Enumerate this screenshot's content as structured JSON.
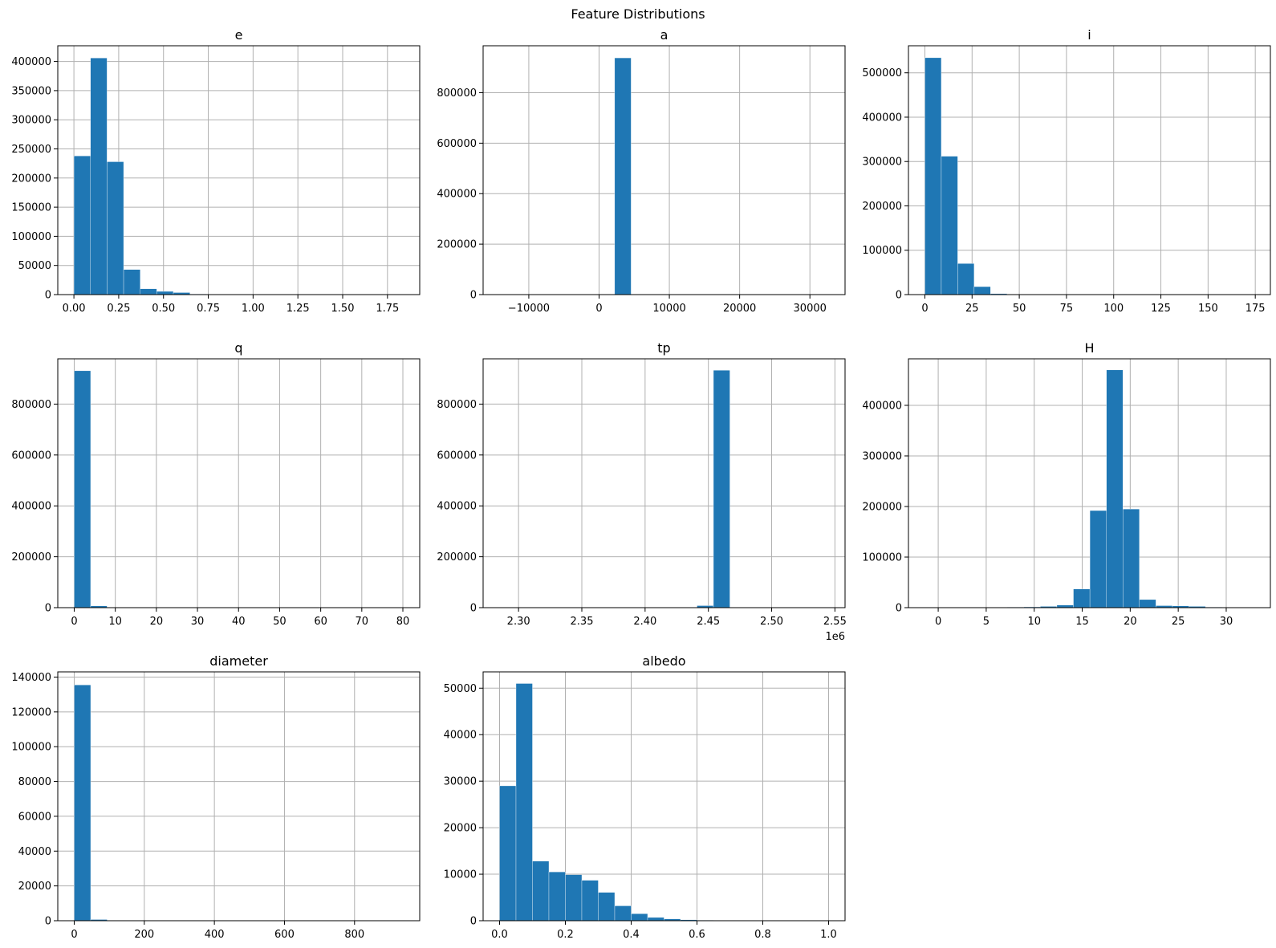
{
  "figure": {
    "title": "Feature Distributions"
  },
  "colors": {
    "bar": "#1f77b4",
    "grid": "#b0b0b0"
  },
  "chart_data": [
    {
      "type": "bar",
      "title": "e",
      "grid": true,
      "xlim": [
        -0.09,
        1.93
      ],
      "ylim": [
        0,
        427000
      ],
      "xticks": [
        0,
        0.25,
        0.5,
        0.75,
        1.0,
        1.25,
        1.5,
        1.75
      ],
      "xtick_labels": [
        "0.00",
        "0.25",
        "0.50",
        "0.75",
        "1.00",
        "1.25",
        "1.50",
        "1.75"
      ],
      "yticks": [
        0,
        50000,
        100000,
        150000,
        200000,
        250000,
        300000,
        350000,
        400000
      ],
      "ytick_labels": [
        "0",
        "50000",
        "100000",
        "150000",
        "200000",
        "250000",
        "300000",
        "350000",
        "400000"
      ],
      "bin_start": 0,
      "bin_end": 1.85,
      "values": [
        238000,
        406000,
        228000,
        43000,
        10000,
        5500,
        3500,
        900,
        500,
        300,
        200,
        150,
        100,
        80,
        60,
        50,
        40,
        30,
        20,
        10
      ]
    },
    {
      "type": "bar",
      "title": "a",
      "grid": true,
      "xlim": [
        -16500,
        35000
      ],
      "ylim": [
        0,
        986000
      ],
      "xticks": [
        -10000,
        0,
        10000,
        20000,
        30000
      ],
      "xtick_labels": [
        "−10000",
        "0",
        "10000",
        "20000",
        "30000"
      ],
      "yticks": [
        0,
        200000,
        400000,
        600000,
        800000
      ],
      "ytick_labels": [
        "0",
        "200000",
        "400000",
        "600000",
        "800000"
      ],
      "bin_start": -14200,
      "bin_end": 32700,
      "values": [
        0,
        0,
        0,
        0,
        0,
        0,
        5,
        938000,
        40,
        10,
        5,
        3,
        2,
        1,
        1,
        1,
        1,
        1,
        1,
        1
      ]
    },
    {
      "type": "bar",
      "title": "i",
      "grid": true,
      "xlim": [
        -8.7,
        183
      ],
      "ylim": [
        0,
        561000
      ],
      "xticks": [
        0,
        25,
        50,
        75,
        100,
        125,
        150,
        175
      ],
      "xtick_labels": [
        "0",
        "25",
        "50",
        "75",
        "100",
        "125",
        "150",
        "175"
      ],
      "yticks": [
        0,
        100000,
        200000,
        300000,
        400000,
        500000
      ],
      "ytick_labels": [
        "0",
        "100000",
        "200000",
        "300000",
        "400000",
        "500000"
      ],
      "bin_start": 0,
      "bin_end": 174,
      "values": [
        534000,
        312000,
        70000,
        18000,
        2000,
        400,
        200,
        100,
        60,
        40,
        30,
        20,
        15,
        10,
        8,
        5,
        4,
        3,
        2,
        1
      ]
    },
    {
      "type": "bar",
      "title": "q",
      "grid": true,
      "xlim": [
        -4,
        84.1
      ],
      "ylim": [
        0,
        978000
      ],
      "xticks": [
        0,
        10,
        20,
        30,
        40,
        50,
        60,
        70,
        80
      ],
      "xtick_labels": [
        "0",
        "10",
        "20",
        "30",
        "40",
        "50",
        "60",
        "70",
        "80"
      ],
      "yticks": [
        0,
        200000,
        400000,
        600000,
        800000
      ],
      "ytick_labels": [
        "0",
        "200000",
        "400000",
        "600000",
        "800000"
      ],
      "bin_start": 0,
      "bin_end": 80,
      "values": [
        931000,
        7000,
        600,
        200,
        100,
        60,
        40,
        30,
        20,
        15,
        10,
        8,
        5,
        4,
        3,
        2,
        2,
        1,
        1,
        1
      ]
    },
    {
      "type": "bar",
      "title": "tp",
      "grid": true,
      "xlim": [
        2272000,
        2558000
      ],
      "ylim": [
        0,
        978000
      ],
      "xticks": [
        2300000,
        2350000,
        2400000,
        2450000,
        2500000,
        2550000
      ],
      "xtick_labels": [
        "2.30",
        "2.35",
        "2.40",
        "2.45",
        "2.50",
        "2.55"
      ],
      "offset_label": "1e6",
      "yticks": [
        0,
        200000,
        400000,
        600000,
        800000
      ],
      "ytick_labels": [
        "0",
        "200000",
        "400000",
        "600000",
        "800000"
      ],
      "bin_start": 2285000,
      "bin_end": 2545000,
      "values": [
        1,
        1,
        1,
        1,
        1,
        1,
        1,
        2,
        3,
        5,
        10,
        20,
        8000,
        933000,
        500,
        50,
        10,
        5,
        2,
        1
      ]
    },
    {
      "type": "bar",
      "title": "H",
      "grid": true,
      "xlim": [
        -3.1,
        34.6
      ],
      "ylim": [
        0,
        492000
      ],
      "xticks": [
        0,
        5,
        10,
        15,
        20,
        25,
        30
      ],
      "xtick_labels": [
        "0",
        "5",
        "10",
        "15",
        "20",
        "25",
        "30"
      ],
      "yticks": [
        0,
        100000,
        200000,
        300000,
        400000
      ],
      "ytick_labels": [
        "0",
        "100000",
        "200000",
        "300000",
        "400000"
      ],
      "bin_start": -1.4,
      "bin_end": 33,
      "values": [
        5,
        10,
        20,
        50,
        100,
        1000,
        1500,
        2500,
        5000,
        37000,
        192000,
        470000,
        195000,
        16000,
        4000,
        3500,
        2500,
        1000,
        200,
        50
      ]
    },
    {
      "type": "bar",
      "title": "diameter",
      "grid": true,
      "xlim": [
        -46.9,
        986
      ],
      "ylim": [
        0,
        143000
      ],
      "xticks": [
        0,
        200,
        400,
        600,
        800
      ],
      "xtick_labels": [
        "0",
        "200",
        "400",
        "600",
        "800"
      ],
      "yticks": [
        0,
        20000,
        40000,
        60000,
        80000,
        100000,
        120000,
        140000
      ],
      "ytick_labels": [
        "0",
        "20000",
        "40000",
        "60000",
        "80000",
        "100000",
        "120000",
        "140000"
      ],
      "bin_start": 0,
      "bin_end": 940,
      "values": [
        135500,
        700,
        120,
        50,
        30,
        20,
        10,
        8,
        5,
        4,
        3,
        2,
        2,
        1,
        1,
        1,
        1,
        1,
        1,
        1
      ]
    },
    {
      "type": "bar",
      "title": "albedo",
      "grid": true,
      "xlim": [
        -0.05,
        1.05
      ],
      "ylim": [
        0,
        53500
      ],
      "xticks": [
        0,
        0.2,
        0.4,
        0.6,
        0.8,
        1.0
      ],
      "xtick_labels": [
        "0.0",
        "0.2",
        "0.4",
        "0.6",
        "0.8",
        "1.0"
      ],
      "yticks": [
        0,
        10000,
        20000,
        30000,
        40000,
        50000
      ],
      "ytick_labels": [
        "0",
        "10000",
        "20000",
        "30000",
        "40000",
        "50000"
      ],
      "bin_start": 0,
      "bin_end": 1.0,
      "values": [
        29000,
        51000,
        12800,
        10500,
        9900,
        8700,
        6100,
        3200,
        1500,
        700,
        400,
        200,
        100,
        60,
        40,
        25,
        15,
        10,
        5,
        2
      ]
    }
  ]
}
